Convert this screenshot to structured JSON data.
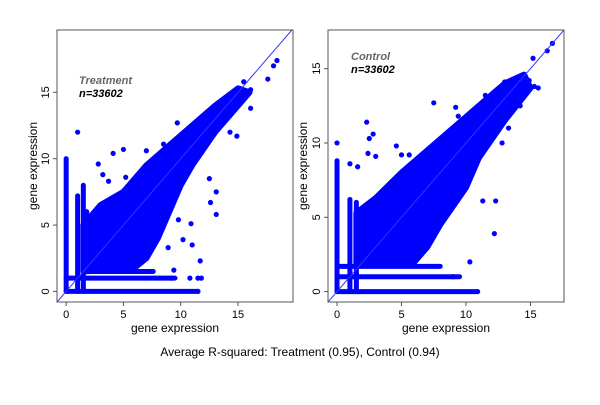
{
  "footer": "Average R-squared: Treatment (0.95), Control (0.94)",
  "colors": {
    "points": "#0000ff",
    "reference_line": "#3333ff",
    "group_label": "#666666",
    "n_label": "#000000"
  },
  "chart_data": [
    {
      "type": "scatter",
      "group_label": "Treatment",
      "n_label": "n=33602",
      "xlabel": "gene expression",
      "ylabel": "gene expression",
      "xlim": [
        -0.8,
        19.8
      ],
      "ylim": [
        -0.8,
        19.7
      ],
      "xticks": [
        "0",
        "5",
        "10",
        "15"
      ],
      "yticks": [
        "0",
        "5",
        "10",
        "15"
      ],
      "reference_line": "y = x",
      "grid": false,
      "points": [
        [
          1,
          12
        ],
        [
          2.8,
          9.6
        ],
        [
          3.2,
          8.8
        ],
        [
          3.7,
          8.3
        ],
        [
          4.1,
          10.4
        ],
        [
          5,
          10.7
        ],
        [
          5.2,
          8.6
        ],
        [
          7,
          10.6
        ],
        [
          8.5,
          11.1
        ],
        [
          9.7,
          12.7
        ],
        [
          11.7,
          13
        ],
        [
          13.3,
          13.7
        ],
        [
          14.9,
          11.7
        ],
        [
          13.1,
          7.5
        ],
        [
          12.6,
          6.7
        ],
        [
          13.1,
          5.8
        ],
        [
          11.7,
          2.3
        ],
        [
          10.8,
          1
        ],
        [
          11.5,
          1
        ],
        [
          11.8,
          1
        ],
        [
          9.2,
          1
        ],
        [
          11.5,
          0
        ],
        [
          10.2,
          3.9
        ],
        [
          11,
          3.5
        ],
        [
          17.6,
          16
        ],
        [
          18.4,
          17.4
        ],
        [
          18.1,
          17
        ],
        [
          16.1,
          15.2
        ],
        [
          16.1,
          13.8
        ],
        [
          15.5,
          15.8
        ],
        [
          14.3,
          12
        ],
        [
          12.5,
          8.5
        ],
        [
          8.9,
          3.3
        ],
        [
          9.4,
          1.6
        ],
        [
          9.8,
          5.4
        ],
        [
          10.9,
          5.1
        ]
      ]
    },
    {
      "type": "scatter",
      "group_label": "Control",
      "n_label": "n=33602",
      "xlabel": "gene expression",
      "ylabel": "gene expression",
      "xlim": [
        -0.7,
        17.6
      ],
      "ylim": [
        -0.7,
        17.6
      ],
      "xticks": [
        "0",
        "5",
        "10",
        "15"
      ],
      "yticks": [
        "0",
        "5",
        "10",
        "15"
      ],
      "reference_line": "y = x",
      "grid": false,
      "points": [
        [
          2.3,
          11.4
        ],
        [
          2.5,
          10.3
        ],
        [
          2.8,
          10.6
        ],
        [
          2.4,
          9.3
        ],
        [
          3,
          9.1
        ],
        [
          4.6,
          9.8
        ],
        [
          5,
          9.2
        ],
        [
          5.6,
          9.2
        ],
        [
          7.5,
          12.7
        ],
        [
          9.2,
          12.4
        ],
        [
          9.4,
          11.8
        ],
        [
          11.5,
          13.2
        ],
        [
          13,
          14.1
        ],
        [
          16.3,
          16.2
        ],
        [
          16.7,
          16.7
        ],
        [
          15.2,
          15.7
        ],
        [
          15.3,
          13.8
        ],
        [
          15.6,
          13.7
        ],
        [
          14.2,
          12.5
        ],
        [
          12.3,
          6.1
        ],
        [
          11.3,
          6.1
        ],
        [
          12.2,
          3.9
        ],
        [
          10.3,
          2
        ],
        [
          9,
          1
        ],
        [
          10.9,
          0
        ],
        [
          0,
          10
        ],
        [
          1,
          8.6
        ],
        [
          1.6,
          8.4
        ],
        [
          14.9,
          14.2
        ],
        [
          13.3,
          11
        ],
        [
          12.8,
          10
        ]
      ]
    }
  ]
}
